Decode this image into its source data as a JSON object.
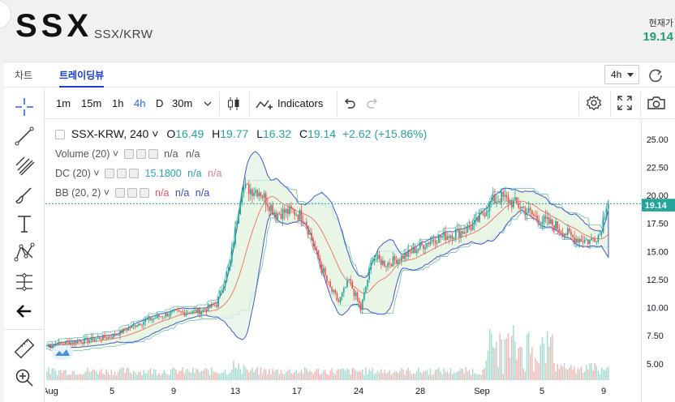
{
  "header": {
    "ticker": "SSX",
    "pair": "SSX/KRW",
    "current_label": "현재가",
    "current_price": "19.14"
  },
  "tabs": [
    {
      "label": "차트",
      "active": false
    },
    {
      "label": "트레이딩뷰",
      "active": true
    }
  ],
  "interval_select": {
    "value": "4h"
  },
  "toolbar": {
    "intervals": [
      "1m",
      "15m",
      "1h",
      "4h",
      "D",
      "30m"
    ],
    "selected_interval": "4h",
    "indicators_label": "Indicators"
  },
  "legend": {
    "symbol": "SSX-KRW, 240",
    "open_label": "O",
    "open": "16.49",
    "high_label": "H",
    "high": "19.77",
    "low_label": "L",
    "low": "16.32",
    "close_label": "C",
    "close": "19.14",
    "change": "+2.62 (+15.86%)",
    "volume": {
      "name": "Volume (20)",
      "v1": "n/a",
      "v2": "n/a"
    },
    "dc": {
      "name": "DC (20)",
      "v1": "15.1800",
      "v2": "n/a",
      "v3": "n/a"
    },
    "bb": {
      "name": "BB (20, 2)",
      "v1": "n/a",
      "v2": "n/a",
      "v3": "n/a"
    }
  },
  "colors": {
    "up": "#26a69a",
    "down": "#ef5350",
    "accent": "#2962ff",
    "price_green": "#22a06b"
  },
  "chart_data": {
    "type": "candlestick",
    "x_tick_labels": [
      "Aug",
      "5",
      "9",
      "13",
      "17",
      "24",
      "28",
      "Sep",
      "5",
      "9"
    ],
    "y_ticks": [
      5.0,
      7.5,
      10.0,
      12.5,
      15.0,
      17.5,
      20.0,
      22.5,
      25.0
    ],
    "y_tick_labels": [
      "5.00",
      "7.50",
      "10.00",
      "12.50",
      "15.00",
      "17.50",
      "20.00",
      "22.50",
      "25.00"
    ],
    "ylim": [
      3.8,
      26.5
    ],
    "last_price": 19.14,
    "last_price_label": "19.14",
    "ohlc_path": [
      {
        "i": 0,
        "c": 6.8
      },
      {
        "i": 20,
        "c": 7.2
      },
      {
        "i": 38,
        "c": 7.6
      },
      {
        "i": 55,
        "c": 8.8
      },
      {
        "i": 72,
        "c": 9.6
      },
      {
        "i": 90,
        "c": 9.8
      },
      {
        "i": 100,
        "c": 10.4
      },
      {
        "i": 108,
        "c": 14.0
      },
      {
        "i": 115,
        "c": 20.5
      },
      {
        "i": 125,
        "c": 20.3
      },
      {
        "i": 135,
        "c": 18.3
      },
      {
        "i": 145,
        "c": 18.5
      },
      {
        "i": 152,
        "c": 17.9
      },
      {
        "i": 158,
        "c": 15.1
      },
      {
        "i": 166,
        "c": 12.0
      },
      {
        "i": 172,
        "c": 10.6
      },
      {
        "i": 178,
        "c": 12.5
      },
      {
        "i": 185,
        "c": 10.0
      },
      {
        "i": 192,
        "c": 14.5
      },
      {
        "i": 200,
        "c": 13.9
      },
      {
        "i": 212,
        "c": 14.7
      },
      {
        "i": 228,
        "c": 16.1
      },
      {
        "i": 244,
        "c": 16.7
      },
      {
        "i": 252,
        "c": 17.3
      },
      {
        "i": 262,
        "c": 19.3
      },
      {
        "i": 268,
        "c": 19.7
      },
      {
        "i": 278,
        "c": 19.0
      },
      {
        "i": 290,
        "c": 17.8
      },
      {
        "i": 300,
        "c": 17.2
      },
      {
        "i": 310,
        "c": 16.2
      },
      {
        "i": 320,
        "c": 15.9
      },
      {
        "i": 326,
        "c": 16.5
      },
      {
        "i": 330,
        "c": 19.1
      }
    ]
  }
}
